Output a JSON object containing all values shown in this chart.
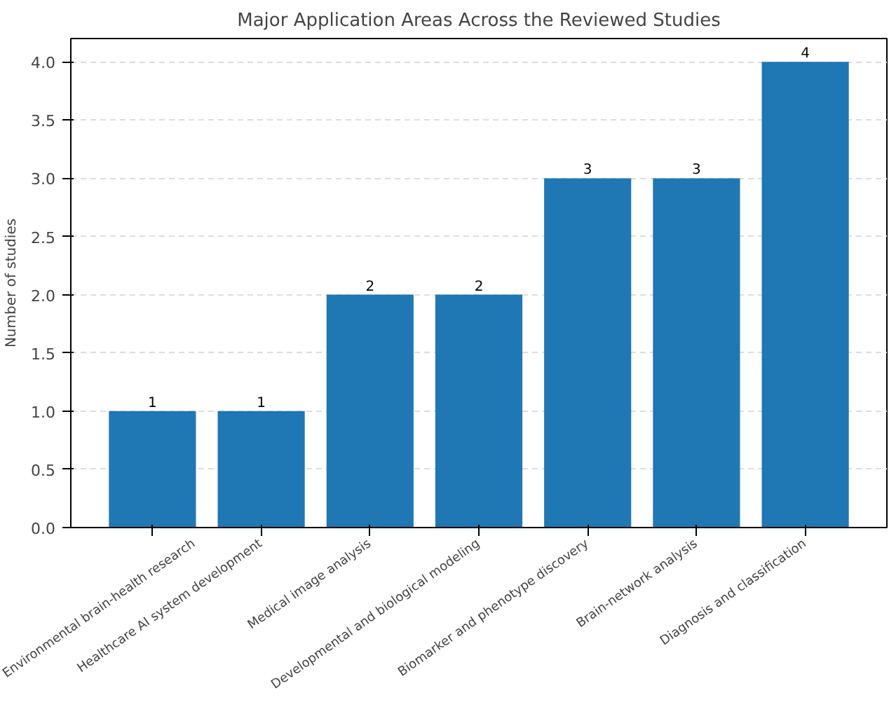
{
  "chart_data": {
    "type": "bar",
    "title": "Major Application Areas Across the Reviewed Studies",
    "ylabel": "Number of studies",
    "categories": [
      "Environmental brain-health research",
      "Healthcare AI system development",
      "Medical image analysis",
      "Developmental and biological modeling",
      "Biomarker and phenotype discovery",
      "Brain-network analysis",
      "Diagnosis and classification"
    ],
    "values": [
      1,
      1,
      2,
      2,
      3,
      3,
      4
    ],
    "color": "#1f77b4",
    "ylim": [
      0,
      4.2
    ],
    "yticks": [
      {
        "value": 0,
        "label": "0.0"
      },
      {
        "value": 0.5,
        "label": "0.5"
      },
      {
        "value": 1,
        "label": "1.0"
      },
      {
        "value": 1.5,
        "label": "1.5"
      },
      {
        "value": 2,
        "label": "2.0"
      },
      {
        "value": 2.5,
        "label": "2.5"
      },
      {
        "value": 3,
        "label": "3.0"
      },
      {
        "value": 3.5,
        "label": "3.5"
      },
      {
        "value": 4,
        "label": "4.0"
      }
    ],
    "grid": "y",
    "data_labels": true
  }
}
